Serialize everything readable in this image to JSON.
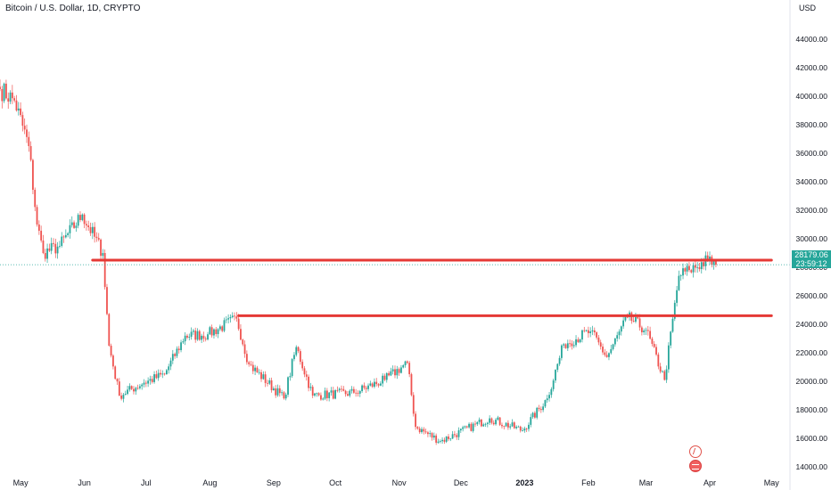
{
  "header": {
    "symbol_title": "Bitcoin / U.S. Dollar, 1D, CRYPTO",
    "currency": "USD"
  },
  "price_label": {
    "value": "28179.06",
    "countdown": "23:59:12",
    "color": "#26a69a"
  },
  "colors": {
    "up": "#26a69a",
    "down": "#ef5350",
    "level_line": "#e53935",
    "last_price_line": "#26a69a"
  },
  "icons": [
    "flash-icon",
    "flag-icon"
  ],
  "chart_data": {
    "type": "candlestick",
    "title": "Bitcoin / U.S. Dollar, 1D, CRYPTO",
    "ylabel": "USD",
    "ylim": [
      13000,
      46000
    ],
    "x_range": [
      "2022-04-21",
      "2023-05-10"
    ],
    "y_ticks": [
      "14000.00",
      "16000.00",
      "18000.00",
      "20000.00",
      "22000.00",
      "24000.00",
      "26000.00",
      "28000.00",
      "30000.00",
      "32000.00",
      "34000.00",
      "36000.00",
      "38000.00",
      "40000.00",
      "42000.00",
      "44000.00"
    ],
    "x_ticks": [
      {
        "label": "May",
        "date": "2022-05-01"
      },
      {
        "label": "Jun",
        "date": "2022-06-01"
      },
      {
        "label": "Jul",
        "date": "2022-07-01"
      },
      {
        "label": "Aug",
        "date": "2022-08-01"
      },
      {
        "label": "Sep",
        "date": "2022-09-01"
      },
      {
        "label": "Oct",
        "date": "2022-10-01"
      },
      {
        "label": "Nov",
        "date": "2022-11-01"
      },
      {
        "label": "Dec",
        "date": "2022-12-01"
      },
      {
        "label": "2023",
        "date": "2023-01-01",
        "bold": true
      },
      {
        "label": "Feb",
        "date": "2023-02-01"
      },
      {
        "label": "Mar",
        "date": "2023-03-01"
      },
      {
        "label": "Apr",
        "date": "2023-04-01"
      },
      {
        "label": "May",
        "date": "2023-05-01"
      }
    ],
    "key_closes": [
      {
        "date": "2022-04-21",
        "close": 40500
      },
      {
        "date": "2022-04-28",
        "close": 39700
      },
      {
        "date": "2022-05-05",
        "close": 36500
      },
      {
        "date": "2022-05-09",
        "close": 31000
      },
      {
        "date": "2022-05-12",
        "close": 29000
      },
      {
        "date": "2022-05-20",
        "close": 29500
      },
      {
        "date": "2022-05-31",
        "close": 31700
      },
      {
        "date": "2022-06-10",
        "close": 29000
      },
      {
        "date": "2022-06-13",
        "close": 22500
      },
      {
        "date": "2022-06-18",
        "close": 19000
      },
      {
        "date": "2022-06-30",
        "close": 19900
      },
      {
        "date": "2022-07-10",
        "close": 20500
      },
      {
        "date": "2022-07-20",
        "close": 23200
      },
      {
        "date": "2022-07-31",
        "close": 23300
      },
      {
        "date": "2022-08-14",
        "close": 24400
      },
      {
        "date": "2022-08-20",
        "close": 21200
      },
      {
        "date": "2022-09-06",
        "close": 18800
      },
      {
        "date": "2022-09-12",
        "close": 22400
      },
      {
        "date": "2022-09-20",
        "close": 19000
      },
      {
        "date": "2022-10-10",
        "close": 19200
      },
      {
        "date": "2022-10-25",
        "close": 20100
      },
      {
        "date": "2022-11-05",
        "close": 21300
      },
      {
        "date": "2022-11-09",
        "close": 16800
      },
      {
        "date": "2022-11-21",
        "close": 15800
      },
      {
        "date": "2022-12-15",
        "close": 17400
      },
      {
        "date": "2022-12-31",
        "close": 16550
      },
      {
        "date": "2023-01-12",
        "close": 18800
      },
      {
        "date": "2023-01-20",
        "close": 22600
      },
      {
        "date": "2023-02-02",
        "close": 23500
      },
      {
        "date": "2023-02-10",
        "close": 21700
      },
      {
        "date": "2023-02-20",
        "close": 24500
      },
      {
        "date": "2023-03-01",
        "close": 23600
      },
      {
        "date": "2023-03-10",
        "close": 20100
      },
      {
        "date": "2023-03-17",
        "close": 27400
      },
      {
        "date": "2023-03-22",
        "close": 27800
      },
      {
        "date": "2023-03-31",
        "close": 28500
      },
      {
        "date": "2023-04-04",
        "close": 28179.06
      }
    ],
    "horizontal_levels": [
      {
        "price": 28500,
        "from": "2022-06-05",
        "to": "2023-05-01"
      },
      {
        "price": 24600,
        "from": "2022-08-15",
        "to": "2023-05-01"
      }
    ],
    "last_price": 28179.06
  }
}
